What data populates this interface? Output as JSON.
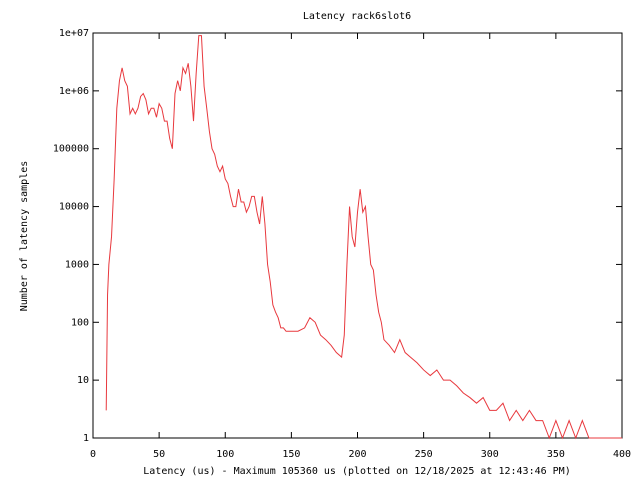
{
  "chart_data": {
    "type": "line",
    "title": "Latency rack6slot6",
    "xlabel": "Latency (us) - Maximum 105360 us (plotted on 12/18/2025 at 12:43:46 PM)",
    "ylabel": "Number of latency samples",
    "log_y": true,
    "xlim": [
      0,
      400
    ],
    "ylim": [
      1,
      10000000
    ],
    "xticks": [
      0,
      50,
      100,
      150,
      200,
      250,
      300,
      350,
      400
    ],
    "yticks": [
      1,
      10,
      100,
      1000,
      10000,
      100000,
      {
        "value": 1000000,
        "label": "1e+06"
      },
      {
        "value": 10000000,
        "label": "1e+07"
      }
    ],
    "series": [
      {
        "color": "#e8383d",
        "x": [
          10,
          11,
          12,
          14,
          16,
          18,
          20,
          22,
          24,
          26,
          28,
          30,
          32,
          34,
          36,
          38,
          40,
          42,
          44,
          46,
          48,
          50,
          52,
          54,
          56,
          58,
          60,
          62,
          64,
          66,
          68,
          70,
          72,
          74,
          76,
          78,
          80,
          82,
          84,
          86,
          88,
          90,
          92,
          94,
          96,
          98,
          100,
          102,
          104,
          106,
          108,
          110,
          112,
          114,
          116,
          118,
          120,
          122,
          124,
          126,
          128,
          130,
          132,
          134,
          136,
          138,
          140,
          142,
          144,
          146,
          150,
          155,
          160,
          164,
          168,
          172,
          176,
          180,
          184,
          188,
          190,
          192,
          194,
          196,
          198,
          200,
          202,
          204,
          206,
          208,
          210,
          212,
          214,
          216,
          218,
          220,
          224,
          228,
          232,
          236,
          240,
          245,
          250,
          255,
          260,
          265,
          270,
          275,
          280,
          285,
          290,
          295,
          300,
          305,
          310,
          315,
          320,
          325,
          330,
          335,
          340,
          345,
          350,
          355,
          360,
          365,
          370,
          375,
          380,
          385,
          390,
          395,
          400
        ],
        "values": [
          3,
          300,
          1000,
          3000,
          30000,
          500000,
          1500000,
          2500000,
          1500000,
          1200000,
          400000,
          500000,
          400000,
          500000,
          800000,
          900000,
          700000,
          400000,
          500000,
          500000,
          350000,
          600000,
          500000,
          300000,
          300000,
          150000,
          100000,
          900000,
          1500000,
          1000000,
          2500000,
          2000000,
          3000000,
          1200000,
          300000,
          2000000,
          9000000,
          9000000,
          1200000,
          500000,
          200000,
          100000,
          80000,
          50000,
          40000,
          50000,
          30000,
          25000,
          15000,
          10000,
          10000,
          20000,
          12000,
          12000,
          8000,
          10000,
          15000,
          15000,
          8000,
          5000,
          15000,
          5000,
          1000,
          500,
          200,
          150,
          120,
          80,
          80,
          70,
          70,
          70,
          80,
          120,
          100,
          60,
          50,
          40,
          30,
          25,
          60,
          1000,
          10000,
          3000,
          2000,
          8000,
          20000,
          8000,
          10000,
          3000,
          1000,
          800,
          300,
          150,
          100,
          50,
          40,
          30,
          50,
          30,
          25,
          20,
          15,
          12,
          15,
          10,
          10,
          8,
          6,
          5,
          4,
          5,
          3,
          3,
          4,
          2,
          3,
          2,
          3,
          2,
          2,
          1,
          2,
          1,
          2,
          1,
          2,
          1,
          1,
          1,
          1,
          1,
          1
        ]
      }
    ]
  }
}
